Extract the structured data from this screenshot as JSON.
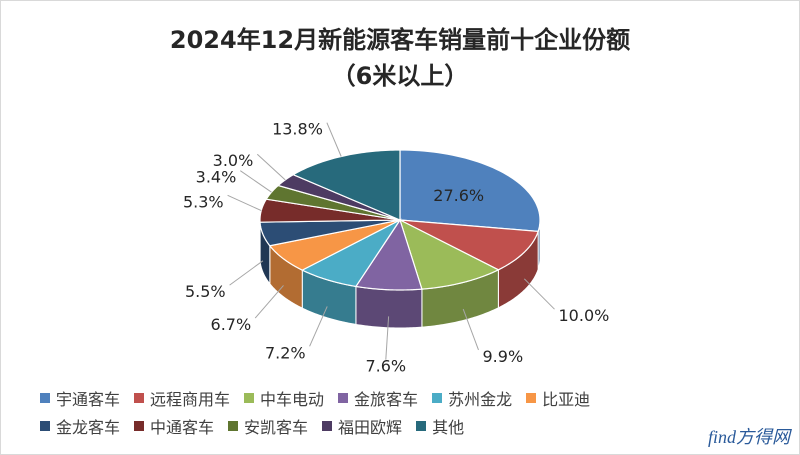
{
  "chart_data": {
    "type": "pie",
    "title": "2024年12月新能源客车销量前十企业份额",
    "subtitle": "（6米以上）",
    "categories": [
      "宇通客车",
      "远程商用车",
      "中车电动",
      "金旅客车",
      "苏州金龙",
      "比亚迪",
      "金龙客车",
      "中通客车",
      "安凯客车",
      "福田欧辉",
      "其他"
    ],
    "values": [
      27.6,
      10.0,
      9.9,
      7.6,
      7.2,
      6.7,
      5.5,
      5.3,
      3.4,
      3.0,
      13.8
    ],
    "data_labels": [
      "27.6%",
      "10.0%",
      "9.9%",
      "7.6%",
      "7.2%",
      "6.7%",
      "5.5%",
      "5.3%",
      "3.4%",
      "3.0%",
      "13.8%"
    ],
    "colors": [
      "#4f81bd",
      "#c0504d",
      "#9bbb59",
      "#8064a2",
      "#4bacc6",
      "#f79646",
      "#2c4d75",
      "#772c2a",
      "#5f7530",
      "#4d3b62",
      "#276a7c"
    ],
    "legend_position": "bottom",
    "style": "3d"
  },
  "watermark": "find方得网"
}
